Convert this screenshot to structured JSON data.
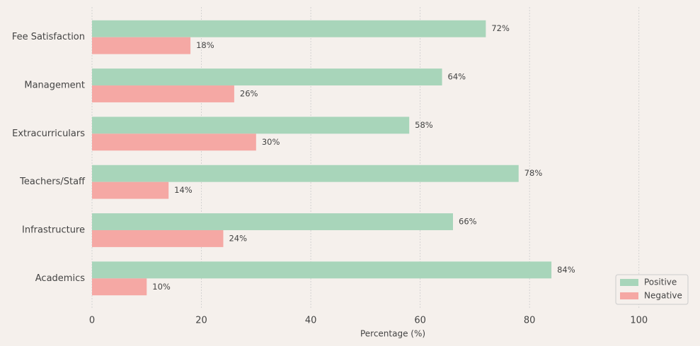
{
  "chart_data": {
    "type": "barh",
    "categories": [
      "Academics",
      "Infrastructure",
      "Teachers/Staff",
      "Extracurriculars",
      "Management",
      "Fee Satisfaction"
    ],
    "series": [
      {
        "name": "Positive",
        "color": "#a8d5ba",
        "values": [
          84,
          66,
          78,
          58,
          64,
          72
        ],
        "value_labels": [
          "84%",
          "66%",
          "78%",
          "58%",
          "64%",
          "72%"
        ]
      },
      {
        "name": "Negative",
        "color": "#f5a8a4",
        "values": [
          10,
          24,
          14,
          30,
          26,
          18
        ],
        "value_labels": [
          "10%",
          "24%",
          "14%",
          "30%",
          "26%",
          "18%"
        ]
      }
    ],
    "xlabel": "Percentage (%)",
    "xlim": [
      0,
      110
    ],
    "xticks": [
      0,
      20,
      40,
      60,
      80,
      100
    ],
    "grid": true,
    "legend": "lower right"
  }
}
